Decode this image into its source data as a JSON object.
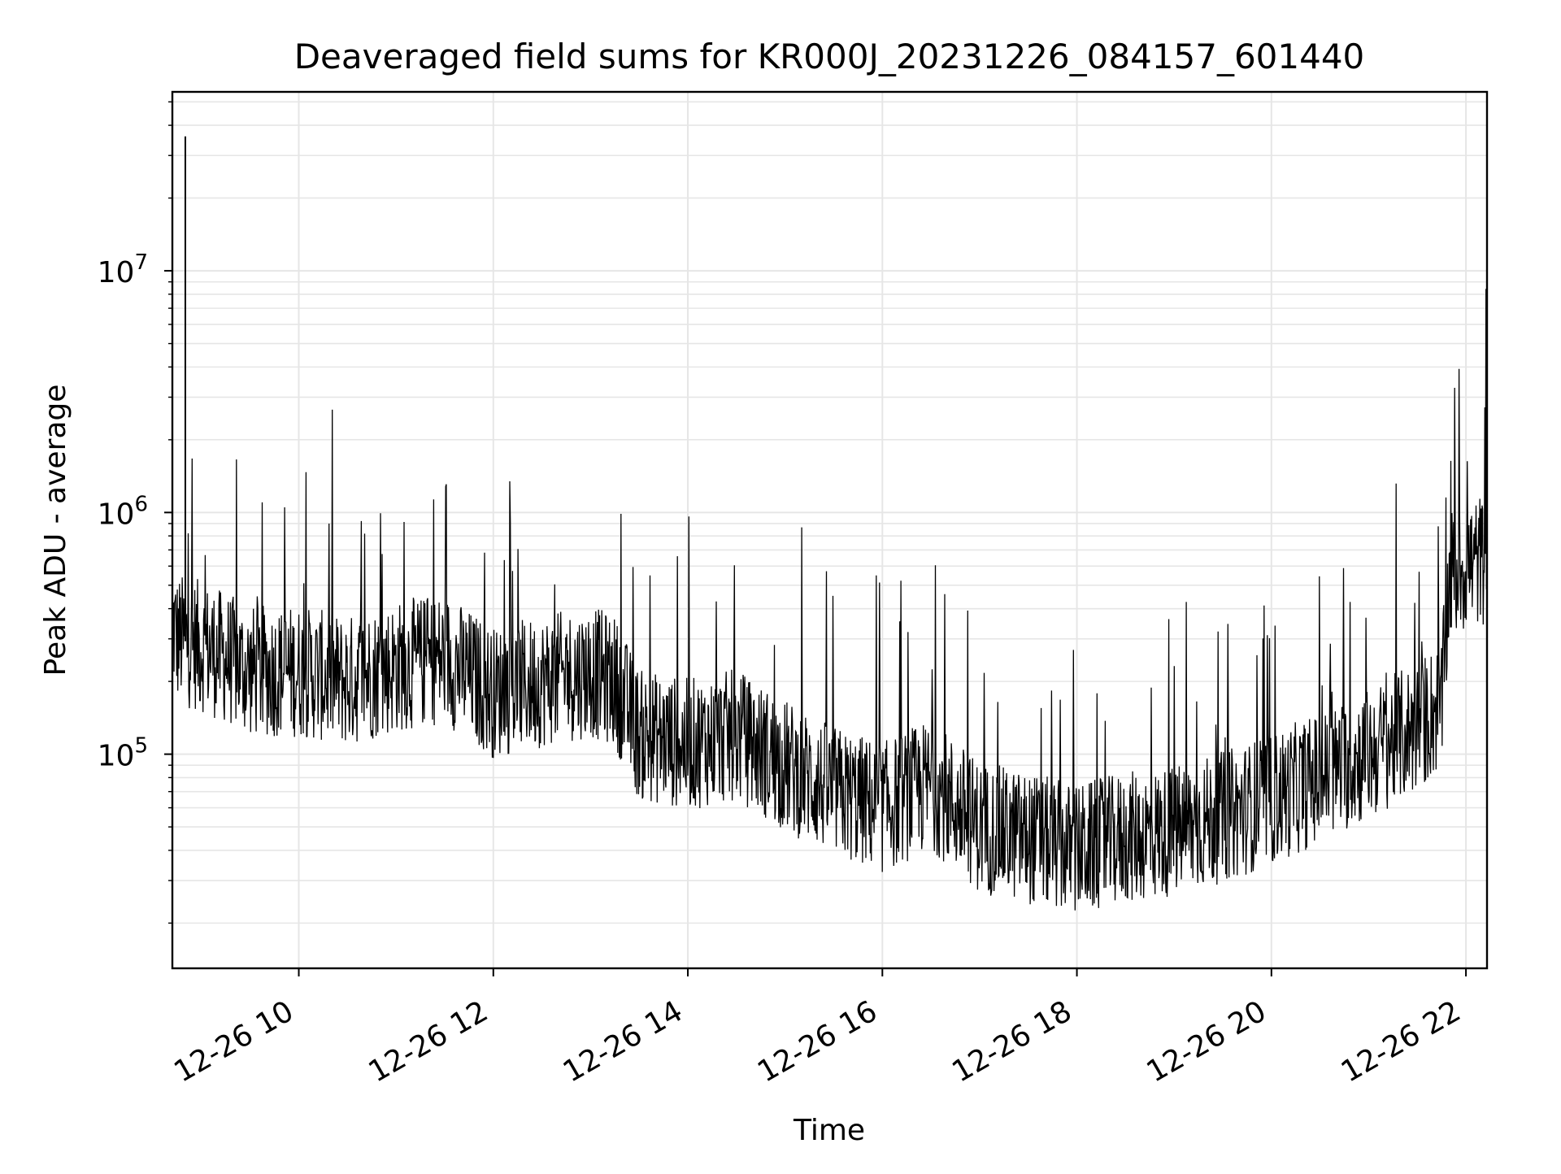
{
  "chart_data": {
    "type": "line",
    "title": "Deaveraged field sums for KR000J_20231226_084157_601440",
    "xlabel": "Time",
    "ylabel": "Peak ADU - average",
    "y_scale": "log",
    "ylim": [
      13000,
      55000000
    ],
    "xlim": [
      "2023-12-26 08:42",
      "2023-12-26 22:13"
    ],
    "grid": true,
    "line_color": "#000000",
    "x_ticks": [
      {
        "value": "2023-12-26 10:00",
        "label": "12-26 10"
      },
      {
        "value": "2023-12-26 12:00",
        "label": "12-26 12"
      },
      {
        "value": "2023-12-26 14:00",
        "label": "12-26 14"
      },
      {
        "value": "2023-12-26 16:00",
        "label": "12-26 16"
      },
      {
        "value": "2023-12-26 18:00",
        "label": "12-26 18"
      },
      {
        "value": "2023-12-26 20:00",
        "label": "12-26 20"
      },
      {
        "value": "2023-12-26 22:00",
        "label": "12-26 22"
      }
    ],
    "y_ticks": [
      {
        "value": 100000,
        "base": "10",
        "exp": "5"
      },
      {
        "value": 1000000,
        "base": "10",
        "exp": "6"
      },
      {
        "value": 10000000,
        "base": "10",
        "exp": "7"
      }
    ],
    "series": [
      {
        "x": [
          "2023-12-26 08:42",
          "2023-12-26 08:45",
          "2023-12-26 08:50",
          "2023-12-26 09:00",
          "2023-12-26 09:15",
          "2023-12-26 09:30",
          "2023-12-26 10:00",
          "2023-12-26 10:30",
          "2023-12-26 11:00",
          "2023-12-26 11:30",
          "2023-12-26 12:00",
          "2023-12-26 12:30",
          "2023-12-26 13:00",
          "2023-12-26 13:15",
          "2023-12-26 13:30",
          "2023-12-26 14:00",
          "2023-12-26 14:30",
          "2023-12-26 15:00",
          "2023-12-26 15:30",
          "2023-12-26 16:00",
          "2023-12-26 16:30",
          "2023-12-26 17:00",
          "2023-12-26 17:30",
          "2023-12-26 18:00",
          "2023-12-26 18:30",
          "2023-12-26 19:00",
          "2023-12-26 19:30",
          "2023-12-26 20:00",
          "2023-12-26 20:30",
          "2023-12-26 21:00",
          "2023-12-26 21:30",
          "2023-12-26 21:45",
          "2023-12-26 21:50",
          "2023-12-26 22:00",
          "2023-12-26 22:13"
        ],
        "y": [
          350000,
          300000,
          36000000,
          280000,
          250000,
          220000,
          220000,
          200000,
          230000,
          250000,
          180000,
          200000,
          220000,
          200000,
          120000,
          110000,
          120000,
          90000,
          70000,
          60000,
          75000,
          50000,
          45000,
          40000,
          45000,
          48000,
          55000,
          65000,
          80000,
          100000,
          130000,
          160000,
          550000,
          600000,
          650000
        ]
      }
    ]
  }
}
